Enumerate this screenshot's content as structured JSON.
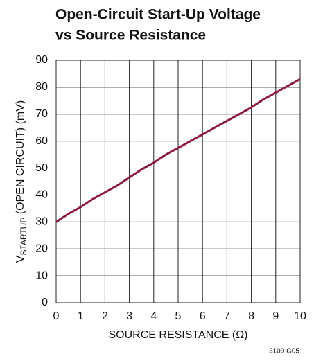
{
  "chart_data": {
    "type": "line",
    "title": [
      "Open-Circuit Start-Up Voltage",
      "vs Source Resistance"
    ],
    "x_label": "SOURCE RESISTANCE (Ω)",
    "y_label": {
      "main": "V",
      "subscript": "STARTUP",
      "rest": " (OPEN CIRCUIT) (mV)"
    },
    "note": "3109 G05",
    "x": [
      0,
      0.5,
      1,
      1.5,
      2,
      2.5,
      3,
      3.5,
      4,
      4.5,
      5,
      5.5,
      6,
      6.5,
      7,
      7.5,
      8,
      8.5,
      9,
      9.5,
      10
    ],
    "values": [
      30,
      33,
      35.5,
      38.5,
      41,
      43.5,
      46.5,
      49.5,
      52,
      55,
      57.5,
      60,
      62.5,
      65,
      67.5,
      70,
      72.5,
      75.5,
      78,
      80.5,
      83
    ],
    "color": "#8b1a3c",
    "xlim": [
      0,
      10
    ],
    "xticks": [
      0,
      1,
      2,
      3,
      4,
      5,
      6,
      7,
      8,
      9,
      10
    ],
    "ylim": [
      0,
      90
    ],
    "yticks": [
      0,
      10,
      20,
      30,
      40,
      50,
      60,
      70,
      80,
      90
    ],
    "grid": true
  }
}
